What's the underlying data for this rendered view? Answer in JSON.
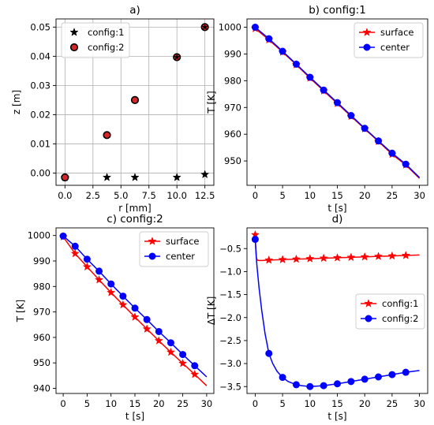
{
  "chart_data": [
    {
      "id": "a",
      "type": "scatter",
      "title": "a)",
      "xlabel": "r [mm]",
      "ylabel": "z [m]",
      "xlim": [
        -0.8,
        13.3
      ],
      "ylim": [
        -0.0042,
        0.0528
      ],
      "xticks": [
        0.0,
        2.5,
        5.0,
        7.5,
        10.0,
        12.5
      ],
      "xtick_labels": [
        "0.0",
        "2.5",
        "5.0",
        "7.5",
        "10.0",
        "12.5"
      ],
      "yticks": [
        0.0,
        0.01,
        0.02,
        0.03,
        0.04,
        0.05
      ],
      "ytick_labels": [
        "0.00",
        "0.01",
        "0.02",
        "0.03",
        "0.04",
        "0.05"
      ],
      "grid": true,
      "legend_position": "top-left",
      "series": [
        {
          "name": "config:1",
          "marker": "star",
          "color": "#000000",
          "points": [
            [
              0.0,
              -0.0015
            ],
            [
              3.75,
              -0.0015
            ],
            [
              6.25,
              -0.0015
            ],
            [
              10.0,
              -0.0015
            ],
            [
              12.5,
              -0.0005
            ]
          ]
        },
        {
          "name": "config:2",
          "marker": "circle",
          "color": "#d62728",
          "edge": "#000000",
          "points": [
            [
              0.0,
              -0.0015
            ],
            [
              3.75,
              0.013
            ],
            [
              6.25,
              0.025
            ],
            [
              10.0,
              0.0397
            ],
            [
              12.5,
              0.05
            ]
          ]
        }
      ],
      "overlay_markers": {
        "marker": "star-small",
        "color": "#000000",
        "points": [
          [
            10.0,
            0.0397
          ],
          [
            12.5,
            0.05
          ]
        ]
      }
    },
    {
      "id": "b",
      "type": "line",
      "title": "b) config:1",
      "xlabel": "t [s]",
      "ylabel": "T [K]",
      "xlim": [
        -1.5,
        31.5
      ],
      "ylim": [
        940.9,
        1003.1
      ],
      "xticks": [
        0,
        5,
        10,
        15,
        20,
        25,
        30
      ],
      "xtick_labels": [
        "0",
        "5",
        "10",
        "15",
        "20",
        "25",
        "30"
      ],
      "yticks": [
        950,
        960,
        970,
        980,
        990,
        1000
      ],
      "ytick_labels": [
        "950",
        "960",
        "970",
        "980",
        "990",
        "1000"
      ],
      "grid": false,
      "legend_position": "top-right",
      "series": [
        {
          "name": "surface",
          "marker": "star",
          "color": "#ff0000",
          "x": [
            0,
            2.5,
            5,
            7.5,
            10,
            12.5,
            15,
            17.5,
            20,
            22.5,
            25,
            27.5,
            30
          ],
          "y": [
            999.5,
            995.3,
            990.7,
            986.0,
            981.0,
            976.2,
            971.5,
            966.7,
            962.0,
            957.3,
            952.5,
            948.5,
            943.5
          ],
          "marker_x": [
            0,
            2.5,
            5,
            7.5,
            10,
            12.5,
            15,
            17.5,
            20,
            22.5,
            25,
            27.5
          ]
        },
        {
          "name": "center",
          "marker": "circle",
          "color": "#0000ff",
          "x": [
            0,
            2.5,
            5,
            7.5,
            10,
            12.5,
            15,
            17.5,
            20,
            22.5,
            25,
            27.5,
            30
          ],
          "y": [
            1000.0,
            995.7,
            991.0,
            986.2,
            981.3,
            976.5,
            971.8,
            967.0,
            962.2,
            957.5,
            952.9,
            948.8,
            943.8
          ],
          "marker_x": [
            0,
            2.5,
            5,
            7.5,
            10,
            12.5,
            15,
            17.5,
            20,
            22.5,
            25,
            27.5
          ]
        }
      ]
    },
    {
      "id": "c",
      "type": "line",
      "title": "c) config:2",
      "xlabel": "t [s]",
      "ylabel": "T [K]",
      "xlim": [
        -1.5,
        31.5
      ],
      "ylim": [
        938.0,
        1003.0
      ],
      "xticks": [
        0,
        5,
        10,
        15,
        20,
        25,
        30
      ],
      "xtick_labels": [
        "0",
        "5",
        "10",
        "15",
        "20",
        "25",
        "30"
      ],
      "yticks": [
        940,
        950,
        960,
        970,
        980,
        990,
        1000
      ],
      "ytick_labels": [
        "940",
        "950",
        "960",
        "970",
        "980",
        "990",
        "1000"
      ],
      "grid": false,
      "legend_position": "top-right",
      "series": [
        {
          "name": "surface",
          "marker": "star",
          "color": "#ff0000",
          "x": [
            0,
            2.5,
            5,
            7.5,
            10,
            12.5,
            15,
            17.5,
            20,
            22.5,
            25,
            27.5,
            30
          ],
          "y": [
            999.5,
            992.9,
            987.7,
            982.6,
            977.6,
            972.8,
            968.0,
            963.3,
            958.7,
            954.2,
            949.8,
            945.5,
            941.0
          ],
          "marker_x": [
            0,
            2.5,
            5,
            7.5,
            10,
            12.5,
            15,
            17.5,
            20,
            22.5,
            25,
            27.5
          ]
        },
        {
          "name": "center",
          "marker": "circle",
          "color": "#0000ff",
          "x": [
            0,
            2.5,
            5,
            7.5,
            10,
            12.5,
            15,
            17.5,
            20,
            22.5,
            25,
            27.5,
            30
          ],
          "y": [
            999.8,
            995.8,
            990.7,
            986.0,
            981.0,
            976.2,
            971.5,
            967.0,
            962.3,
            957.9,
            953.3,
            948.9,
            944.5
          ],
          "marker_x": [
            0,
            2.5,
            5,
            7.5,
            10,
            12.5,
            15,
            17.5,
            20,
            22.5,
            25,
            27.5
          ]
        }
      ]
    },
    {
      "id": "d",
      "type": "line",
      "title": "d)",
      "xlabel": "t [s]",
      "ylabel": "ΔT [K]",
      "xlim": [
        -1.5,
        31.5
      ],
      "ylim": [
        -3.65,
        -0.05
      ],
      "xticks": [
        0,
        5,
        10,
        15,
        20,
        25,
        30
      ],
      "xtick_labels": [
        "0",
        "5",
        "10",
        "15",
        "20",
        "25",
        "30"
      ],
      "yticks": [
        -3.5,
        -3.0,
        -2.5,
        -2.0,
        -1.5,
        -1.0,
        -0.5
      ],
      "ytick_labels": [
        "−3.5",
        "−3.0",
        "−2.5",
        "−2.0",
        "−1.5",
        "−1.0",
        "−0.5"
      ],
      "grid": false,
      "legend_position": "center-right",
      "series": [
        {
          "name": "config:1",
          "marker": "star",
          "color": "#ff0000",
          "x": [
            0,
            0.08,
            0.2,
            0.4,
            0.7,
            1.2,
            2.5,
            5,
            7.5,
            10,
            12.5,
            15,
            17.5,
            20,
            22.5,
            25,
            27.5,
            30
          ],
          "y": [
            -0.2,
            -0.45,
            -0.7,
            -0.75,
            -0.76,
            -0.76,
            -0.75,
            -0.74,
            -0.73,
            -0.72,
            -0.71,
            -0.7,
            -0.69,
            -0.68,
            -0.67,
            -0.66,
            -0.65,
            -0.64
          ],
          "marker_x": [
            0,
            2.5,
            5,
            7.5,
            10,
            12.5,
            15,
            17.5,
            20,
            22.5,
            25,
            27.5
          ],
          "marker_y": [
            -0.2,
            -0.75,
            -0.74,
            -0.73,
            -0.72,
            -0.71,
            -0.7,
            -0.69,
            -0.68,
            -0.67,
            -0.66,
            -0.65
          ]
        },
        {
          "name": "config:2",
          "marker": "circle",
          "color": "#0000ff",
          "x": [
            0,
            0.3,
            0.7,
            1.2,
            1.8,
            2.5,
            3.2,
            4,
            5,
            6,
            7.5,
            8.5,
            10,
            12.5,
            15,
            17.5,
            20,
            22.5,
            25,
            27.5,
            30
          ],
          "y": [
            -0.3,
            -0.85,
            -1.35,
            -1.85,
            -2.35,
            -2.78,
            -3.0,
            -3.17,
            -3.3,
            -3.39,
            -3.46,
            -3.48,
            -3.5,
            -3.48,
            -3.44,
            -3.39,
            -3.34,
            -3.29,
            -3.24,
            -3.19,
            -3.15
          ],
          "marker_x": [
            0,
            2.5,
            5,
            7.5,
            10,
            12.5,
            15,
            17.5,
            20,
            22.5,
            25,
            27.5
          ],
          "marker_y": [
            -0.3,
            -2.78,
            -3.3,
            -3.46,
            -3.5,
            -3.48,
            -3.44,
            -3.39,
            -3.34,
            -3.29,
            -3.24,
            -3.19
          ]
        }
      ]
    }
  ]
}
